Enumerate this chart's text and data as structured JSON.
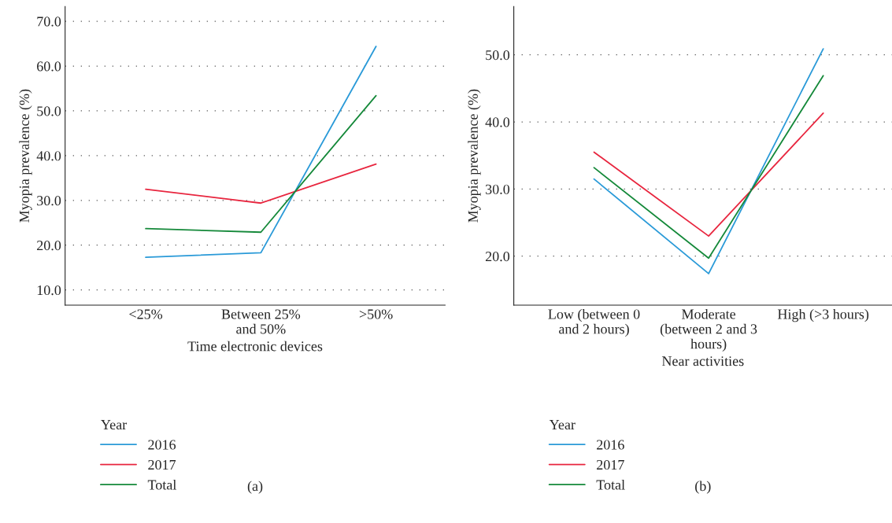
{
  "chart_data": [
    {
      "type": "line",
      "xlabel": "Time electronic devices",
      "ylabel": "Myopia prevalence (%)",
      "legend_title": "Year",
      "legend": "bottom",
      "grid": "y",
      "line_style": "solid",
      "categories": [
        "<25%",
        "Between 25%\nand 50%",
        ">50%"
      ],
      "ylim": [
        6.6,
        73.3
      ],
      "yticks": [
        {
          "value": 10,
          "label": "10.0"
        },
        {
          "value": 20,
          "label": "20.0"
        },
        {
          "value": 30,
          "label": "30.0"
        },
        {
          "value": 40,
          "label": "40.0"
        },
        {
          "value": 50,
          "label": "50.0"
        },
        {
          "value": 60,
          "label": "60.0"
        },
        {
          "value": 70,
          "label": "70.0"
        }
      ],
      "series": [
        {
          "name": "2016",
          "color": "#2a9ad8",
          "values": [
            17.3,
            18.3,
            64.4
          ]
        },
        {
          "name": "2017",
          "color": "#e8263f",
          "values": [
            32.5,
            29.4,
            38.1
          ]
        },
        {
          "name": "Total",
          "color": "#15893a",
          "values": [
            23.7,
            22.9,
            53.4
          ]
        }
      ],
      "annotations": [
        "(a)"
      ]
    },
    {
      "type": "line",
      "xlabel": "Near activities",
      "ylabel": "Myopia prevalence (%)",
      "legend_title": "Year",
      "legend": "bottom",
      "grid": "y",
      "line_style": "solid",
      "categories": [
        "Low (between 0\nand 2 hours)",
        "Moderate\n(between 2 and 3\nhours)",
        "High (>3 hours)"
      ],
      "ylim": [
        12.7,
        57.2
      ],
      "yticks": [
        {
          "value": 20,
          "label": "20.0"
        },
        {
          "value": 30,
          "label": "30.0"
        },
        {
          "value": 40,
          "label": "40.0"
        },
        {
          "value": 50,
          "label": "50.0"
        }
      ],
      "series": [
        {
          "name": "2016",
          "color": "#2a9ad8",
          "values": [
            31.5,
            17.4,
            50.9
          ]
        },
        {
          "name": "2017",
          "color": "#e8263f",
          "values": [
            35.5,
            23.0,
            41.3
          ]
        },
        {
          "name": "Total",
          "color": "#15893a",
          "values": [
            33.2,
            19.7,
            46.9
          ]
        }
      ],
      "annotations": [
        "(b)"
      ]
    }
  ]
}
